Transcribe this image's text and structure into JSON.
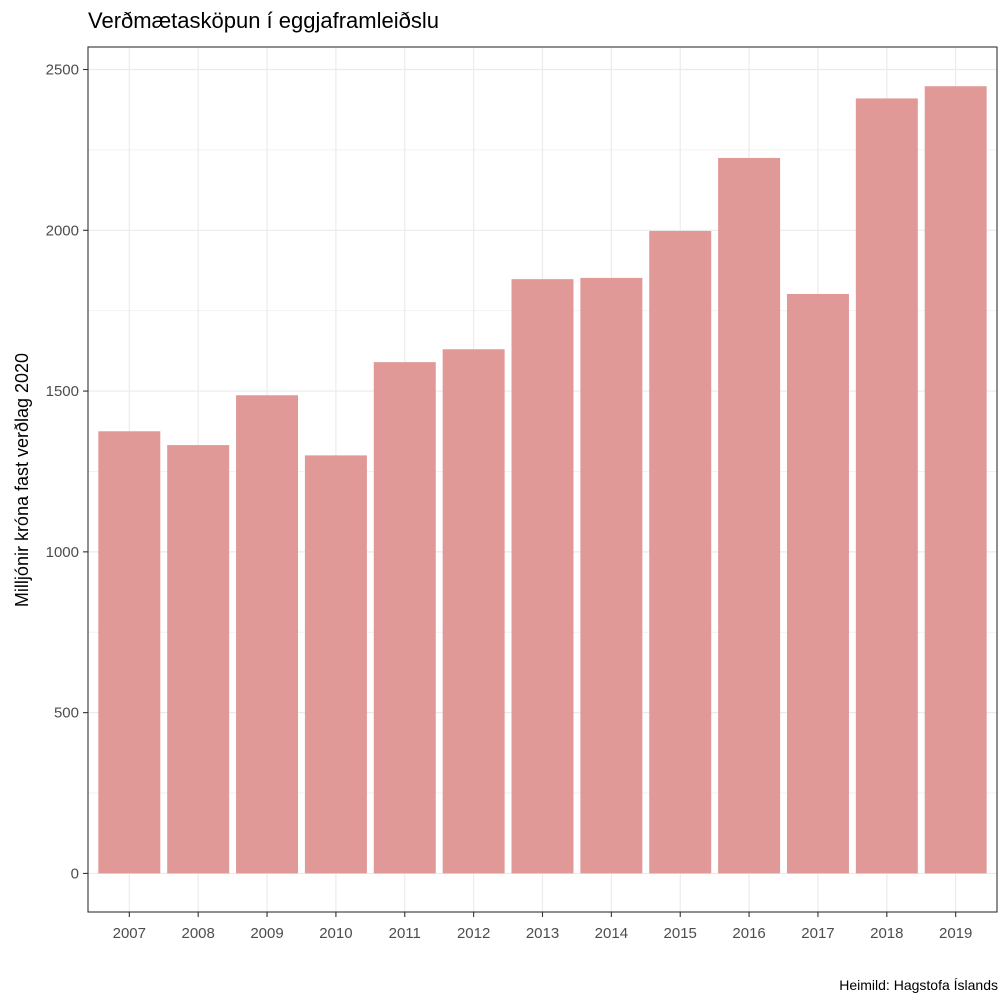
{
  "chart_data": {
    "type": "bar",
    "title": "Verðmætasköpun í eggjaframleiðslu",
    "ylabel": "Milljónir króna fast verðlag 2020",
    "xlabel": "",
    "caption": "Heimild: Hagstofa Íslands",
    "categories": [
      "2007",
      "2008",
      "2009",
      "2010",
      "2011",
      "2012",
      "2013",
      "2014",
      "2015",
      "2016",
      "2017",
      "2018",
      "2019"
    ],
    "values": [
      1375,
      1332,
      1487,
      1300,
      1590,
      1630,
      1848,
      1852,
      1998,
      2225,
      1802,
      2410,
      2448
    ],
    "yticks": [
      0,
      500,
      1000,
      1500,
      2000,
      2500
    ],
    "ylim": [
      -120,
      2570
    ],
    "bar_color": "#e09996",
    "grid": true
  }
}
